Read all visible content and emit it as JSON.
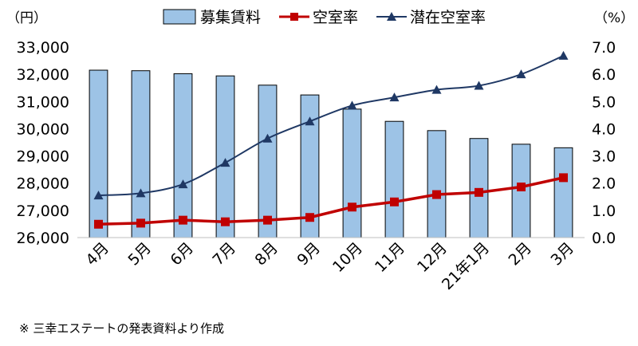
{
  "chart_data": {
    "type": "bar",
    "categories": [
      "4月",
      "5月",
      "6月",
      "7月",
      "8月",
      "9月",
      "10月",
      "11月",
      "12月",
      "21年1月",
      "2月",
      "3月"
    ],
    "series": [
      {
        "name": "募集賃料",
        "type": "bar",
        "axis": "left",
        "color": "#9DC3E6",
        "values": [
          32150,
          32130,
          32020,
          31940,
          31600,
          31240,
          30720,
          30270,
          29930,
          29640,
          29430,
          29300
        ]
      },
      {
        "name": "空室率",
        "type": "line",
        "axis": "right",
        "color": "#C00000",
        "marker": "square",
        "values": [
          0.49,
          0.53,
          0.64,
          0.58,
          0.64,
          0.74,
          1.12,
          1.31,
          1.58,
          1.66,
          1.86,
          2.2
        ]
      },
      {
        "name": "潜在空室率",
        "type": "line",
        "axis": "right",
        "color": "#1F3864",
        "marker": "triangle",
        "values": [
          1.55,
          1.63,
          1.96,
          2.75,
          3.64,
          4.27,
          4.85,
          5.15,
          5.43,
          5.58,
          6.0,
          6.68
        ]
      }
    ],
    "y_left": {
      "unit": "（円）",
      "ylim": [
        26000,
        33000
      ],
      "ticks": [
        "26,000",
        "27,000",
        "28,000",
        "29,000",
        "30,000",
        "31,000",
        "32,000",
        "33,000"
      ]
    },
    "y_right": {
      "unit": "（%）",
      "ylim": [
        0,
        7
      ],
      "ticks": [
        "0.0",
        "1.0",
        "2.0",
        "3.0",
        "4.0",
        "5.0",
        "6.0",
        "7.0"
      ]
    },
    "legend_position": "top",
    "grid": false,
    "source_note": "※ 三幸エステートの発表資料より作成"
  }
}
